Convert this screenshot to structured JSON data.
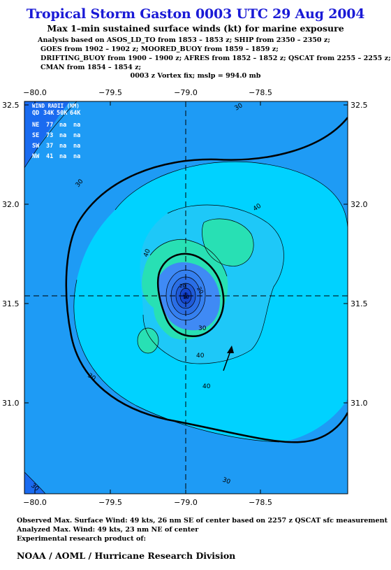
{
  "title": "Tropical Storm Gaston 0003 UTC 29 Aug 2004",
  "subtitle": "Max 1–min sustained surface winds (kt) for marine exposure",
  "analysis_lines": [
    "Analysis based on  ASOS_LD_TO from 1853 – 1853 z;  SHIP from 2350 – 2350 z;",
    "GOES from 1902 – 1902 z;  MOORED_BUOY from 1859 – 1859 z;",
    "DRIFTING_BUOY from 1900 – 1900 z;  AFRES from 1852 – 1852 z;  QSCAT from 2255 – 2255 z;",
    "CMAN from 1854 – 1854 z;"
  ],
  "vortex_fix": "0003 z Vortex fix; mslp = 994.0 mb",
  "map": {
    "lon_ticks": [
      "−80.0",
      "−79.5",
      "−79.0",
      "−78.5"
    ],
    "lat_ticks": [
      "32.5",
      "32.0",
      "31.5",
      "31.0"
    ],
    "center_lon": -79.05,
    "center_lat": 31.54,
    "contour_labels": [
      "30",
      "30",
      "30",
      "30",
      "30",
      "30",
      "40",
      "40",
      "40",
      "40",
      "20",
      "10",
      "20"
    ],
    "colors": {
      "ocean_deep": "#1a6bf0",
      "band_20_30": "#1e9bf5",
      "band_30_40": "#00d2ff",
      "band_40_50": "#28e0b4",
      "core_low": "#3f8af5",
      "core_mid": "#2a6ee6",
      "core_high": "#1545cc",
      "eye": "#0a2aa0"
    }
  },
  "wind_radii": {
    "title": "WIND RADII (NM)",
    "header": [
      "QD",
      "34K",
      "50K",
      "64K"
    ],
    "rows": [
      [
        "NE",
        "77",
        "na",
        "na"
      ],
      [
        "SE",
        "73",
        "na",
        "na"
      ],
      [
        "SW",
        "37",
        "na",
        "na"
      ],
      [
        "NW",
        "41",
        "na",
        "na"
      ]
    ]
  },
  "footer": {
    "observed": "Observed Max. Surface Wind: 49 kts, 26 nm SE of center based on 2257 z QSCAT sfc measurement",
    "analyzed": "Analyzed Max. Wind: 49 kts, 23 nm NE of center",
    "experimental": "Experimental research product of:",
    "org": "NOAA / AOML / Hurricane Research Division"
  }
}
